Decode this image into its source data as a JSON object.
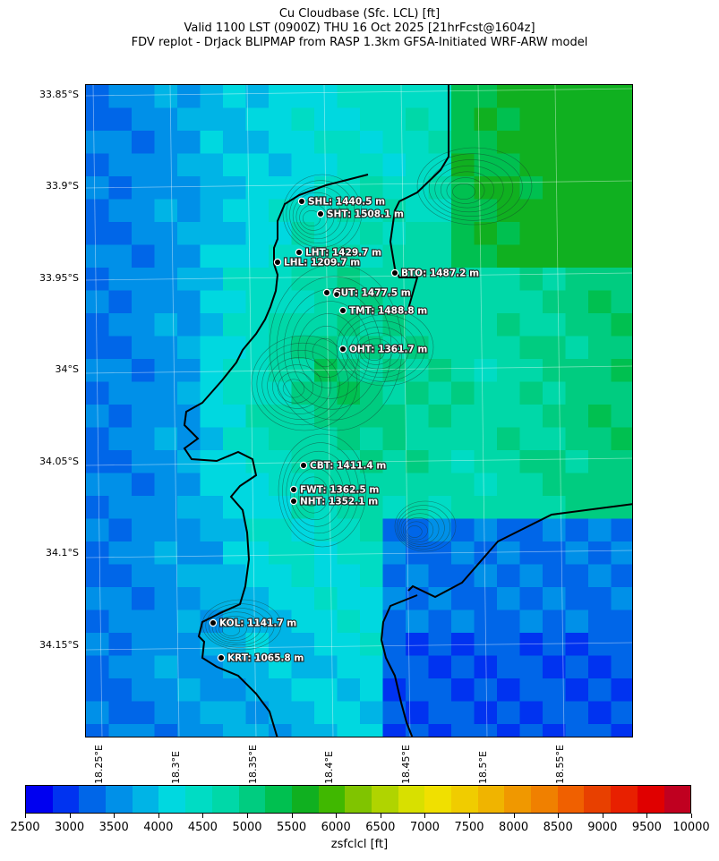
{
  "title": {
    "line1": "Cu Cloudbase (Sfc. LCL) [ft]",
    "line2": "Valid 1100 LST (0900Z) THU 16 Oct 2025 [21hrFcst@1604z]",
    "line3": "FDV replot - DrJack BLIPMAP from RASP 1.3km GFSA-Initiated WRF-ARW model"
  },
  "map": {
    "lat_labels": [
      "33.85°S",
      "33.9°S",
      "33.95°S",
      "34°S",
      "34.05°S",
      "34.1°S",
      "34.15°S"
    ],
    "lon_labels": [
      "18.25°E",
      "18.3°E",
      "18.35°E",
      "18.4°E",
      "18.45°E",
      "18.5°E",
      "18.55°E"
    ],
    "stations": [
      {
        "label": "SHL: 1440.5 m"
      },
      {
        "label": "SHT: 1508.1 m"
      },
      {
        "label": "LHT: 1429.7 m"
      },
      {
        "label": "LHL: 1209.7 m"
      },
      {
        "label": "BTO: 1487.2 m"
      },
      {
        "label": "GUT: 1477.5 m"
      },
      {
        "label": "TMT: 1488.8 m"
      },
      {
        "label": "OHT: 1361.7 m"
      },
      {
        "label": "CBT: 1411.4 m"
      },
      {
        "label": "FWT: 1362.5 m"
      },
      {
        "label": "NHT: 1352.1 m"
      },
      {
        "label": "KOL: 1141.7 m"
      },
      {
        "label": "KRT: 1065.8 m"
      }
    ]
  },
  "colorbar": {
    "label": "zsfclcl [ft]",
    "ticks": [
      "2500",
      "3000",
      "3500",
      "4000",
      "4500",
      "5000",
      "5500",
      "6000",
      "6500",
      "7000",
      "7500",
      "8000",
      "8500",
      "9000",
      "9500",
      "10000"
    ],
    "colors": [
      "#0000f0",
      "#0033f0",
      "#0066e8",
      "#0090e8",
      "#00b4e6",
      "#00d8e0",
      "#00dcc4",
      "#00d8a8",
      "#00cc80",
      "#00c050",
      "#10b020",
      "#40b800",
      "#80c400",
      "#b0d400",
      "#d8e000",
      "#f0e000",
      "#f0cc00",
      "#f0b400",
      "#f09800",
      "#f08000",
      "#f06000",
      "#e84000",
      "#e82000",
      "#e00000",
      "#c00020"
    ]
  }
}
